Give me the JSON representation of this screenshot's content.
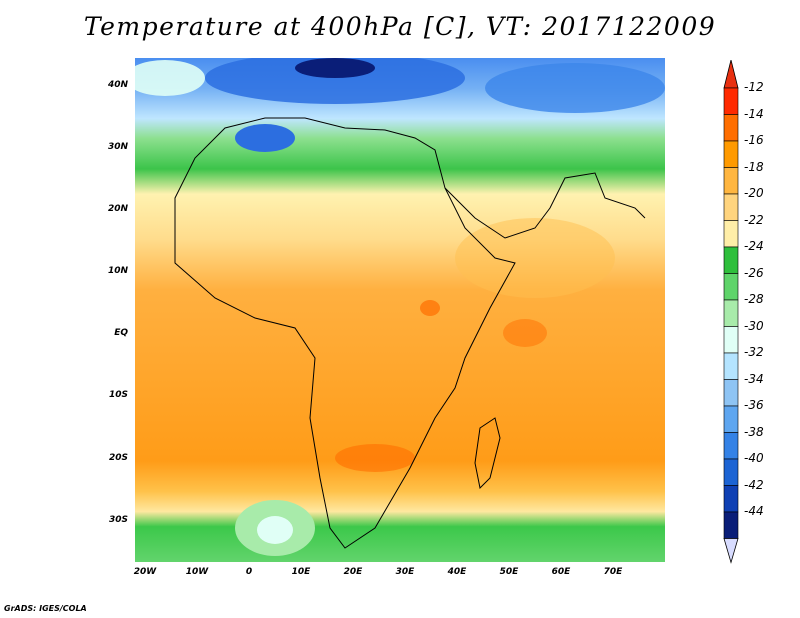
{
  "title": "Temperature at 400hPa [C], VT: 2017122009",
  "credit": "GrADS: IGES/COLA",
  "y_ticks": [
    {
      "label": "40N",
      "lat": 40
    },
    {
      "label": "30N",
      "lat": 30
    },
    {
      "label": "20N",
      "lat": 20
    },
    {
      "label": "10N",
      "lat": 10
    },
    {
      "label": "EQ",
      "lat": 0
    },
    {
      "label": "10S",
      "lat": -10
    },
    {
      "label": "20S",
      "lat": -20
    },
    {
      "label": "30S",
      "lat": -30
    }
  ],
  "x_ticks": [
    {
      "label": "20W",
      "lon": -20
    },
    {
      "label": "10W",
      "lon": -10
    },
    {
      "label": "0",
      "lon": 0
    },
    {
      "label": "10E",
      "lon": 10
    },
    {
      "label": "20E",
      "lon": 20
    },
    {
      "label": "30E",
      "lon": 30
    },
    {
      "label": "40E",
      "lon": 40
    },
    {
      "label": "50E",
      "lon": 50
    },
    {
      "label": "60E",
      "lon": 60
    },
    {
      "label": "70E",
      "lon": 70
    }
  ],
  "map_extent": {
    "lon_min": -22,
    "lon_max": 80,
    "lat_min": -37,
    "lat_max": 44
  },
  "colorbar": {
    "labels": [
      "-12",
      "-14",
      "-16",
      "-18",
      "-20",
      "-22",
      "-24",
      "-26",
      "-28",
      "-30",
      "-32",
      "-34",
      "-36",
      "-38",
      "-40",
      "-42",
      "-44"
    ],
    "colors": [
      "#ff2a00",
      "#ff6e00",
      "#ff9a00",
      "#ffb640",
      "#ffd47e",
      "#ffeea8",
      "#2fbf3c",
      "#5fd46a",
      "#a8ebaa",
      "#e0fff6",
      "#b4e4ff",
      "#8ec4f4",
      "#5ea6f0",
      "#3482e6",
      "#1c64d4",
      "#0f40b4",
      "#0a1e78"
    ],
    "over_color": "#e83010",
    "under_color": "#d8dcff"
  }
}
